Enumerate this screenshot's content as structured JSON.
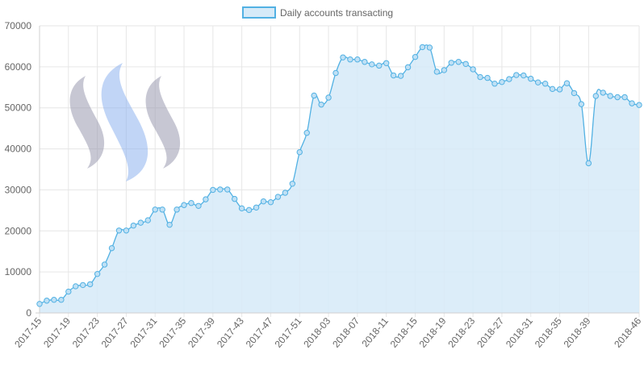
{
  "chart_data": {
    "type": "area",
    "legend": {
      "label": "Daily accounts transacting",
      "position": "top-center"
    },
    "colors": {
      "line": "#52b1e3",
      "fill": "#d6eaf8",
      "point_fill": "#bfe0f5",
      "grid": "#e6e6e6",
      "axis_text": "#666666",
      "watermark_gray": "#9a9ab0",
      "watermark_blue": "#8fb3ef"
    },
    "grid": true,
    "ylim": [
      0,
      70000
    ],
    "yticks": [
      0,
      10000,
      20000,
      30000,
      40000,
      50000,
      60000,
      70000
    ],
    "xtick_labels": [
      "2017-15",
      "2017-19",
      "2017-23",
      "2017-27",
      "2017-31",
      "2017-35",
      "2017-39",
      "2017-43",
      "2017-47",
      "2017-51",
      "2018-03",
      "2018-07",
      "2018-11",
      "2018-15",
      "2018-19",
      "2018-23",
      "2018-27",
      "2018-31",
      "2018-35",
      "2018-39",
      "2018-46"
    ],
    "xtick_indices": [
      0,
      4,
      8,
      12,
      16,
      20,
      24,
      28,
      32,
      36,
      40,
      44,
      48,
      52,
      56,
      60,
      64,
      68,
      72,
      76,
      83
    ],
    "x": [
      "2017-15",
      "2017-16",
      "2017-17",
      "2017-18",
      "2017-19",
      "2017-20",
      "2017-21",
      "2017-22",
      "2017-23",
      "2017-24",
      "2017-25",
      "2017-26",
      "2017-27",
      "2017-28",
      "2017-29",
      "2017-30",
      "2017-31",
      "2017-32",
      "2017-33",
      "2017-34",
      "2017-35",
      "2017-36",
      "2017-37",
      "2017-38",
      "2017-39",
      "2017-40",
      "2017-41",
      "2017-42",
      "2017-43",
      "2017-44",
      "2017-45",
      "2017-46",
      "2017-47",
      "2017-48",
      "2017-49",
      "2017-50",
      "2017-51",
      "2017-52",
      "2018-01",
      "2018-02",
      "2018-03",
      "2018-04",
      "2018-05",
      "2018-06",
      "2018-07",
      "2018-08",
      "2018-09",
      "2018-10",
      "2018-11",
      "2018-12",
      "2018-13",
      "2018-14",
      "2018-15",
      "2018-16",
      "2018-17",
      "2018-18",
      "2018-19",
      "2018-20",
      "2018-21",
      "2018-22",
      "2018-23",
      "2018-24",
      "2018-25",
      "2018-26",
      "2018-27",
      "2018-28",
      "2018-29",
      "2018-30",
      "2018-31",
      "2018-32",
      "2018-33",
      "2018-34",
      "2018-35",
      "2018-36",
      "2018-37",
      "2018-38",
      "2018-39",
      "2018-40",
      "2018-41",
      "2018-42",
      "2018-43",
      "2018-44",
      "2018-45",
      "2018-46"
    ],
    "series": [
      {
        "name": "Daily accounts transacting",
        "values": [
          2200,
          3000,
          3200,
          3200,
          5200,
          6500,
          6800,
          7000,
          9500,
          11800,
          15800,
          20100,
          20100,
          21300,
          22000,
          22600,
          25200,
          25200,
          21500,
          25200,
          26300,
          26800,
          26100,
          27700,
          30000,
          30100,
          30100,
          27800,
          25500,
          25100,
          25700,
          27200,
          27000,
          28300,
          29300,
          31500,
          39200,
          43900,
          53000,
          50800,
          52500,
          58500,
          62300,
          61800,
          61800,
          61200,
          60600,
          60300,
          60900,
          57900,
          57800,
          59900,
          62400,
          64800,
          64700,
          58800,
          59200,
          61000,
          61200,
          60700,
          59400,
          57500,
          57300,
          55900,
          56300,
          57000,
          58000,
          57900,
          57100,
          56200,
          55900,
          54600,
          54500,
          56000,
          53600,
          50900,
          36500,
          52900,
          53700,
          52900,
          52600,
          52600,
          51100,
          50700
        ]
      }
    ]
  }
}
